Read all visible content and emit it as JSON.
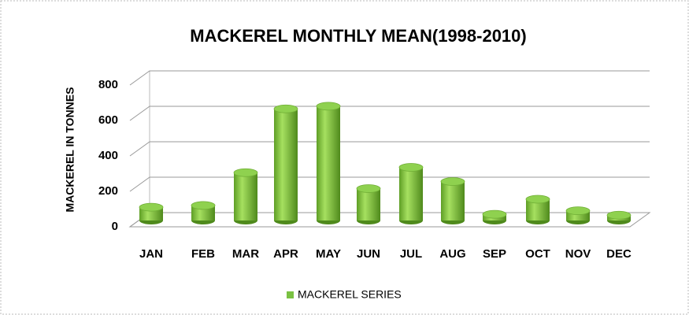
{
  "chart_data": {
    "type": "bar",
    "title": "MACKEREL MONTHLY MEAN(1998-2010)",
    "ylabel": "MACKEREL IN TONNES",
    "categories": [
      "JAN",
      "FEB",
      "MAR",
      "APR",
      "MAY",
      "JUN",
      "JUL",
      "AUG",
      "SEP",
      "OCT",
      "NOV",
      "DEC"
    ],
    "series": [
      {
        "name": "MACKEREL SERIES",
        "color": "#7ac142",
        "values": [
          75,
          85,
          270,
          630,
          645,
          180,
          300,
          220,
          35,
          120,
          55,
          30
        ]
      }
    ],
    "ylim": [
      0,
      800
    ],
    "yticks": [
      0,
      200,
      400,
      600,
      800
    ],
    "grid": true
  }
}
